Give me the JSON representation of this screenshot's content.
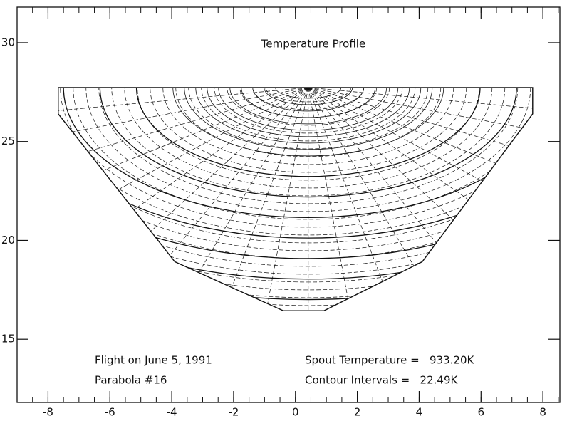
{
  "chart_data": {
    "type": "contour",
    "title": "Temperature Profile",
    "annotations": [
      "Flight on June 5, 1991",
      "Parabola #16",
      "Spout Temperature =   933.20K",
      "Contour Intervals =   22.49K"
    ],
    "xlim": [
      -9.0,
      8.55
    ],
    "ylim": [
      11.8,
      31.8
    ],
    "xticks": [
      -8,
      -6,
      -4,
      -2,
      0,
      2,
      4,
      6,
      8
    ],
    "yticks": [
      15,
      20,
      25,
      30
    ],
    "boundary": {
      "x": [
        -7.67,
        7.67,
        7.67,
        4.1,
        0.92,
        -0.39,
        -3.9,
        -7.67
      ],
      "y": [
        27.73,
        27.73,
        26.4,
        18.92,
        16.44,
        16.44,
        18.92,
        26.4
      ]
    },
    "color": "#111111"
  }
}
